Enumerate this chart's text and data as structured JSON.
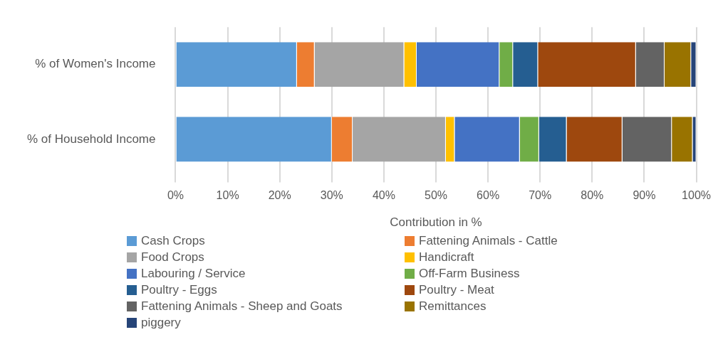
{
  "chart_data": {
    "type": "bar",
    "orientation": "horizontal",
    "stacked": true,
    "xlabel": "Contribution in %",
    "categories": [
      "% of Women's Income",
      "% of Household Income"
    ],
    "series": [
      {
        "name": "Cash Crops",
        "color": "#5b9bd5",
        "values": [
          23.3,
          30.0
        ]
      },
      {
        "name": "Fattening Animals - Cattle",
        "color": "#ed7d31",
        "values": [
          3.4,
          4.0
        ]
      },
      {
        "name": "Food Crops",
        "color": "#a5a5a5",
        "values": [
          17.2,
          17.9
        ]
      },
      {
        "name": "Handicraft",
        "color": "#ffc000",
        "values": [
          2.4,
          1.7
        ]
      },
      {
        "name": "Labouring / Service",
        "color": "#4472c4",
        "values": [
          15.9,
          12.5
        ]
      },
      {
        "name": "Off-Farm Business",
        "color": "#70ad47",
        "values": [
          2.6,
          3.7
        ]
      },
      {
        "name": "Poultry - Eggs",
        "color": "#255e91",
        "values": [
          4.8,
          5.3
        ]
      },
      {
        "name": "Poultry - Meat",
        "color": "#9e480e",
        "values": [
          18.8,
          10.7
        ]
      },
      {
        "name": "Fattening Animals - Sheep and Goats",
        "color": "#636363",
        "values": [
          5.5,
          9.5
        ]
      },
      {
        "name": "Remittances",
        "color": "#997300",
        "values": [
          5.1,
          4.0
        ]
      },
      {
        "name": "piggery",
        "color": "#264478",
        "values": [
          1.0,
          0.7
        ]
      }
    ],
    "xlim": [
      0,
      100
    ],
    "xticks": [
      {
        "value": 0,
        "label": "0%"
      },
      {
        "value": 10,
        "label": "10%"
      },
      {
        "value": 20,
        "label": "20%"
      },
      {
        "value": 30,
        "label": "30%"
      },
      {
        "value": 40,
        "label": "40%"
      },
      {
        "value": 50,
        "label": "50%"
      },
      {
        "value": 60,
        "label": "60%"
      },
      {
        "value": 70,
        "label": "70%"
      },
      {
        "value": 80,
        "label": "80%"
      },
      {
        "value": 90,
        "label": "90%"
      },
      {
        "value": 100,
        "label": "100%"
      }
    ],
    "grid": "x",
    "legend": "bottom"
  }
}
